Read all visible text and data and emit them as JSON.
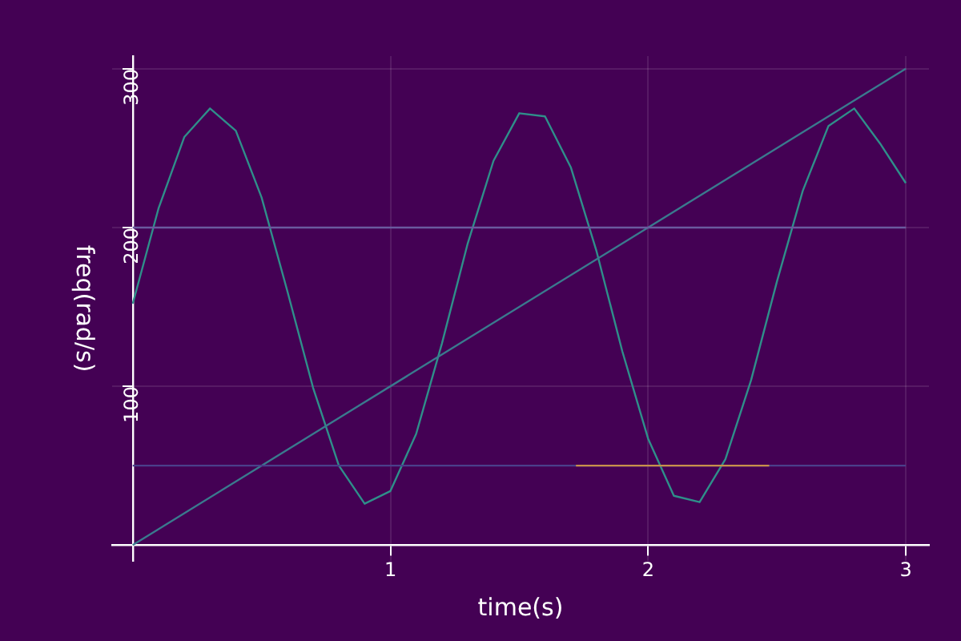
{
  "chart_data": {
    "type": "line",
    "xlabel": "time(s)",
    "ylabel": "freq(rad/s)",
    "xlim": [
      -0.08,
      3.09
    ],
    "ylim": [
      -10,
      308
    ],
    "xticks": [
      1,
      2,
      3
    ],
    "yticks": [
      100,
      200,
      300
    ],
    "grid": true,
    "legend": false,
    "marker": "none",
    "line_style": "solid",
    "series": [
      {
        "color": "#2f8f8a",
        "x": [
          0,
          0.1,
          0.2,
          0.3,
          0.4,
          0.5,
          0.6,
          0.7,
          0.8,
          0.9,
          1.0,
          1.1,
          1.2,
          1.3,
          1.4,
          1.5,
          1.6,
          1.7,
          1.8,
          1.9,
          2.0,
          2.1,
          2.2,
          2.3,
          2.4,
          2.5,
          2.6,
          2.7,
          2.8,
          2.9,
          3.0
        ],
        "values": [
          152,
          212,
          257,
          275,
          261,
          219,
          160,
          99,
          50,
          26,
          34,
          70,
          127,
          190,
          242,
          272,
          270,
          238,
          185,
          122,
          67,
          31,
          27,
          54,
          104,
          166,
          223,
          264,
          275,
          253,
          228
        ]
      },
      {
        "color": "#3a7a8e",
        "x": [
          0,
          3
        ],
        "values": [
          0,
          300
        ]
      },
      {
        "color": "#6a5a9e",
        "x": [
          0,
          3
        ],
        "values": [
          200,
          200
        ]
      },
      {
        "color": "#4a3f8a",
        "x": [
          0,
          3
        ],
        "values": [
          50,
          50
        ]
      },
      {
        "color": "#c8904a",
        "x": [
          1.72,
          2.47
        ],
        "values": [
          50,
          50
        ]
      }
    ]
  }
}
